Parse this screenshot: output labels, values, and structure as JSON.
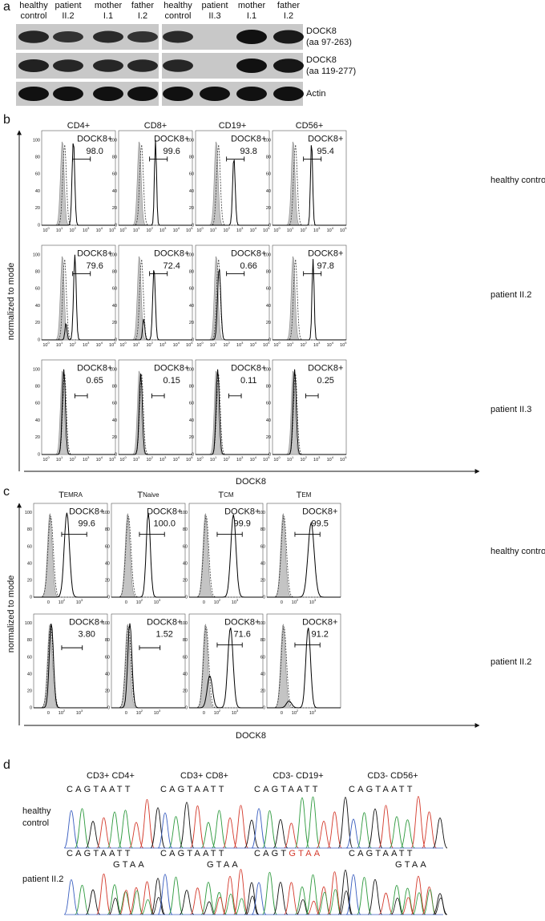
{
  "panel_a": {
    "label": "a",
    "lanes": [
      [
        "healthy",
        "control"
      ],
      [
        "patient",
        "II.2"
      ],
      [
        "mother",
        "I.1"
      ],
      [
        "father",
        "I.2"
      ],
      [
        "healthy",
        "control"
      ],
      [
        "patient",
        "II.3"
      ],
      [
        "mother",
        "I.1"
      ],
      [
        "father",
        "I.2"
      ]
    ],
    "blots": [
      [
        "DOCK8",
        "(aa 97-263)"
      ],
      [
        "DOCK8",
        "(aa 119-277)"
      ],
      [
        "Actin"
      ]
    ]
  },
  "panel_b": {
    "label": "b",
    "columns": [
      "CD4+",
      "CD8+",
      "CD19+",
      "CD56+"
    ],
    "rows": [
      {
        "name": "healthy control",
        "gates": [
          "98.0",
          "99.6",
          "93.8",
          "95.4"
        ]
      },
      {
        "name": "patient II.2",
        "gates": [
          "79.6",
          "72.4",
          "0.66",
          "97.8"
        ]
      },
      {
        "name": "patient II.3",
        "gates": [
          "0.65",
          "0.15",
          "0.11",
          "0.25"
        ]
      }
    ],
    "gate_label": "DOCK8+",
    "y_axis_label": "normalized to mode",
    "x_axis_label": "DOCK8",
    "yticks": [
      "0",
      "20",
      "40",
      "60",
      "80",
      "100"
    ],
    "xticks": [
      {
        "base": "10",
        "exp": "0"
      },
      {
        "base": "10",
        "exp": "1"
      },
      {
        "base": "10",
        "exp": "2"
      },
      {
        "base": "10",
        "exp": "3"
      },
      {
        "base": "10",
        "exp": "4"
      },
      {
        "base": "10",
        "exp": "5"
      }
    ]
  },
  "panel_c": {
    "label": "c",
    "columns": [
      {
        "main": "T",
        "sub": "EMRA"
      },
      {
        "main": "T",
        "sub": "Naive"
      },
      {
        "main": "T",
        "sub": "CM"
      },
      {
        "main": "T",
        "sub": "EM"
      }
    ],
    "rows": [
      {
        "name": "healthy control",
        "gates": [
          "99.6",
          "100.0",
          "99.9",
          "99.5"
        ]
      },
      {
        "name": "patient II.2",
        "gates": [
          "3.80",
          "1.52",
          "71.6",
          "91.2"
        ]
      }
    ],
    "gate_label": "DOCK8+",
    "y_axis_label": "normalized to mode",
    "x_axis_label": "DOCK8",
    "yticks": [
      "0",
      "20",
      "40",
      "60",
      "80",
      "100"
    ],
    "xticks": [
      {
        "base": "0"
      },
      {
        "base": "10",
        "exp": "2"
      },
      {
        "base": "10",
        "exp": "3"
      }
    ]
  },
  "panel_d": {
    "label": "d",
    "columns": [
      "CD3+ CD4+",
      "CD3+ CD8+",
      "CD3- CD19+",
      "CD3- CD56+"
    ],
    "rows": [
      {
        "name": [
          "healthy",
          "control"
        ],
        "cells": [
          {
            "seq": "CAGTAATT"
          },
          {
            "seq": "CAGTAATT"
          },
          {
            "seq": "CAGTAATT"
          },
          {
            "seq": "CAGTAATT"
          }
        ]
      },
      {
        "name": [
          "patient II.2"
        ],
        "cells": [
          {
            "seq": "CAGTAATT",
            "mut": "GTAA"
          },
          {
            "seq": "CAGTAATT",
            "mut": "GTAA"
          },
          {
            "seq": "CAGT",
            "mut": "GTAA",
            "inline": true
          },
          {
            "seq": "CAGTAATT",
            "mut": "GTAA"
          }
        ]
      }
    ]
  }
}
